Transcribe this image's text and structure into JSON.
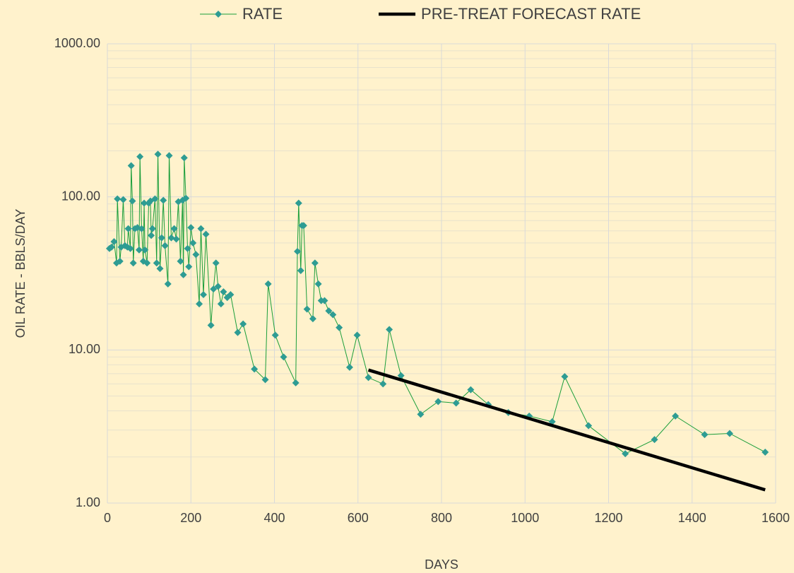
{
  "chart_data": {
    "type": "line",
    "x_label": "DAYS",
    "y_label": "OIL RATE - BBLS/DAY",
    "xlim": [
      0,
      1600
    ],
    "xticks": [
      0,
      200,
      400,
      600,
      800,
      1000,
      1200,
      1400,
      1600
    ],
    "ylim": [
      1,
      1000
    ],
    "log_y": true,
    "grid": true,
    "minor_grid": true,
    "yticks": [
      {
        "value": 1,
        "label": "1.00"
      },
      {
        "value": 10,
        "label": "10.00"
      },
      {
        "value": 100,
        "label": "100.00"
      },
      {
        "value": 1000,
        "label": "1000.00"
      }
    ],
    "legend": "top",
    "series": [
      {
        "name": "RATE",
        "color": "#1a9e3a",
        "marker_color": "#2e9c93",
        "marker": "diamond",
        "x": [
          5,
          10,
          16,
          22,
          24,
          30,
          33,
          38,
          42,
          48,
          50,
          55,
          57,
          60,
          62,
          66,
          72,
          76,
          78,
          82,
          86,
          88,
          90,
          95,
          99,
          103,
          105,
          108,
          114,
          118,
          121,
          126,
          130,
          134,
          138,
          145,
          148,
          153,
          160,
          165,
          170,
          175,
          180,
          182,
          184,
          188,
          192,
          195,
          200,
          205,
          212,
          220,
          224,
          230,
          236,
          248,
          254,
          260,
          265,
          272,
          278,
          287,
          295,
          312,
          325,
          352,
          378,
          385,
          402,
          422,
          451,
          455,
          458,
          463,
          466,
          470,
          478,
          492,
          497,
          505,
          512,
          520,
          530,
          540,
          555,
          580,
          598,
          625,
          660,
          675,
          703,
          750,
          792,
          835,
          870,
          912,
          960,
          1010,
          1065,
          1095,
          1152,
          1240,
          1310,
          1360,
          1430,
          1490,
          1575
        ],
        "values": [
          46,
          47,
          51,
          37,
          97,
          38,
          47,
          96,
          48,
          47,
          62,
          46,
          160,
          94,
          37,
          62,
          63,
          45,
          183,
          62,
          38,
          91,
          45,
          37,
          91,
          94,
          56,
          62,
          97,
          37,
          190,
          34,
          54,
          95,
          48,
          27,
          186,
          54,
          62,
          53,
          93,
          38,
          95,
          31,
          180,
          98,
          46,
          35,
          63,
          50,
          42,
          20,
          62,
          23,
          57,
          14.5,
          25,
          37,
          26,
          20,
          24,
          22,
          23,
          13,
          14.8,
          7.5,
          6.4,
          27,
          12.5,
          9,
          6.1,
          44,
          91,
          33,
          65,
          65,
          18.5,
          16,
          37,
          27,
          21,
          21,
          18,
          17,
          14,
          7.7,
          12.5,
          6.6,
          6,
          13.6,
          6.8,
          3.8,
          4.6,
          4.5,
          5.5,
          4.4,
          3.9,
          3.7,
          3.4,
          6.7,
          3.2,
          2.1,
          2.6,
          3.7,
          2.8,
          2.85,
          2.15
        ]
      },
      {
        "name": "PRE-TREAT FORECAST RATE",
        "color": "#000000",
        "marker": "none",
        "x": [
          625,
          1575
        ],
        "values": [
          7.4,
          1.22
        ]
      }
    ]
  }
}
